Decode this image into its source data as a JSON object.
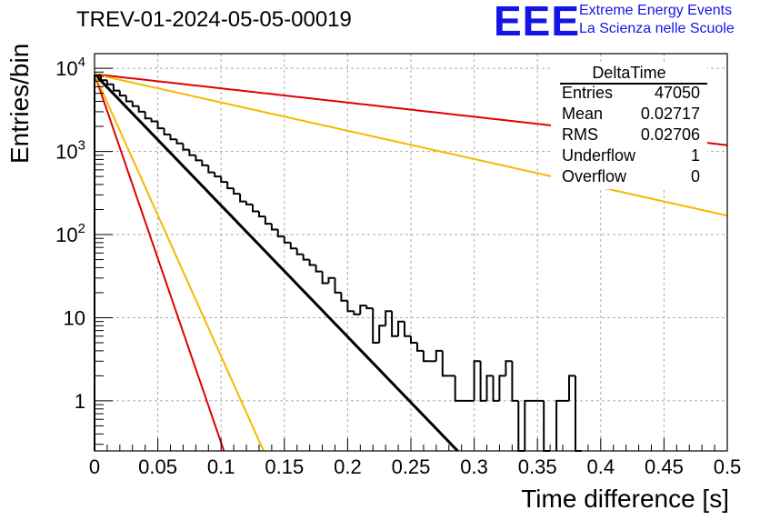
{
  "title": "TREV-01-2024-05-05-00019",
  "logo": {
    "mark": "EEE",
    "line1": "Extreme Energy Events",
    "line2": "La Scienza nelle Scuole"
  },
  "stats": {
    "title": "DeltaTime",
    "rows": [
      {
        "key": "Entries",
        "value": "47050"
      },
      {
        "key": "Mean",
        "value": "0.02717"
      },
      {
        "key": "RMS",
        "value": "0.02706"
      },
      {
        "key": "Underflow",
        "value": "1"
      },
      {
        "key": "Overflow",
        "value": "0"
      }
    ]
  },
  "chart_data": {
    "type": "line",
    "xlabel": "Time difference [s]",
    "ylabel": "Entries/bin",
    "xlim": [
      0,
      0.5
    ],
    "ylim": [
      0.25,
      15000
    ],
    "yscale": "log",
    "grid": true,
    "x_ticks": [
      "0",
      "0.05",
      "0.1",
      "0.15",
      "0.2",
      "0.25",
      "0.3",
      "0.35",
      "0.4",
      "0.45",
      "0.5"
    ],
    "y_ticks": [
      {
        "base": "10",
        "exp": "4"
      },
      {
        "base": "10",
        "exp": "3"
      },
      {
        "base": "10",
        "exp": "2"
      },
      {
        "base": "10",
        "exp": ""
      },
      {
        "base": "1",
        "exp": ""
      }
    ],
    "histogram": {
      "bin_width": 0.005,
      "counts": [
        8200,
        7200,
        6400,
        5400,
        4700,
        4000,
        3500,
        3000,
        2500,
        2300,
        1900,
        1600,
        1400,
        1250,
        1050,
        900,
        780,
        680,
        560,
        500,
        430,
        360,
        310,
        250,
        230,
        190,
        165,
        135,
        115,
        95,
        80,
        68,
        58,
        50,
        43,
        36,
        26,
        30,
        20,
        16,
        12,
        11,
        14,
        13,
        5,
        8,
        12,
        6,
        9,
        6,
        5,
        4,
        3,
        3,
        4,
        2,
        2,
        1,
        1,
        1,
        3,
        1,
        2,
        1,
        2,
        3,
        1,
        0,
        1,
        1,
        1,
        0,
        0,
        1,
        1,
        2,
        0,
        0,
        0,
        0,
        0,
        0,
        0,
        0,
        0,
        0,
        0,
        0,
        0,
        0,
        0,
        0,
        0,
        0,
        0,
        0,
        0,
        0,
        0,
        0
      ]
    },
    "series": [
      {
        "color": "#000000",
        "kind": "exponential",
        "y0": 8500,
        "tau": 0.0275
      },
      {
        "color": "#e00000",
        "kind": "exponential",
        "y0": 8500,
        "tau": 0.0098
      },
      {
        "color": "#f5b800",
        "kind": "exponential",
        "y0": 8500,
        "tau": 0.0128
      },
      {
        "color": "#e00000",
        "kind": "exponential",
        "y0": 8500,
        "tau": 0.2543
      },
      {
        "color": "#f5b800",
        "kind": "exponential",
        "y0": 8500,
        "tau": 0.1276
      }
    ]
  }
}
